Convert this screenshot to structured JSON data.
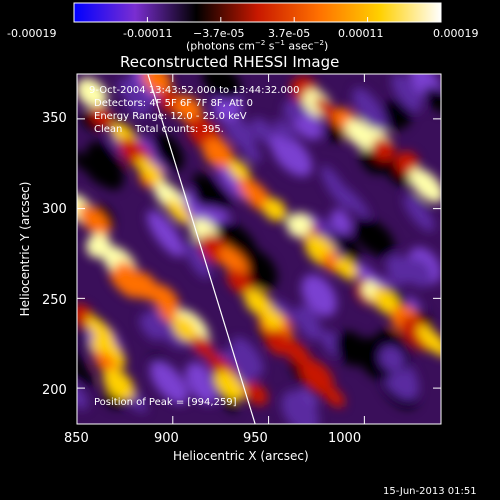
{
  "chart_data": {
    "type": "heatmap",
    "title": "Reconstructed RHESSI Image",
    "xlabel": "Heliocentric X (arcsec)",
    "ylabel": "Heliocentric Y (arcsec)",
    "xlim": [
      850,
      1040
    ],
    "ylim": [
      180,
      375
    ],
    "xticks": [
      850,
      900,
      950,
      1000
    ],
    "yticks": [
      200,
      250,
      300,
      350
    ],
    "colorbar": {
      "range": [
        -0.00019,
        0.00019
      ],
      "tick_labels": [
        "-0.00019",
        "-0.00011",
        "−3.7e-05",
        "3.7e-05",
        "0.00011",
        "0.00019"
      ],
      "units_label": "(photons cm",
      "units_sup1": "−2",
      "units_mid": " s",
      "units_sup2": "−1",
      "units_end": " asec",
      "units_sup3": "−2",
      "units_close": ")",
      "colors": [
        "#0000ff",
        "#7a2ed1",
        "#000000",
        "#c81800",
        "#ff7000",
        "#ffd000",
        "#ffffff"
      ]
    },
    "annotations": {
      "time_range": " 9-Oct-2004 13:43:52.000 to 13:44:32.000",
      "detectors": "Detectors: 4F 5F 6F 7F 8F, Att 0",
      "energy": "Energy Range: 12.0 - 25.0 keV",
      "method": "Clean    Total counts: 395.",
      "peak": "Position of Peak = [994,259]"
    },
    "limb_line": {
      "x": [
        887,
        943
      ],
      "y": [
        375,
        180
      ],
      "color": "#ffffff"
    },
    "footer_timestamp": "15-Jun-2013 01:51"
  }
}
